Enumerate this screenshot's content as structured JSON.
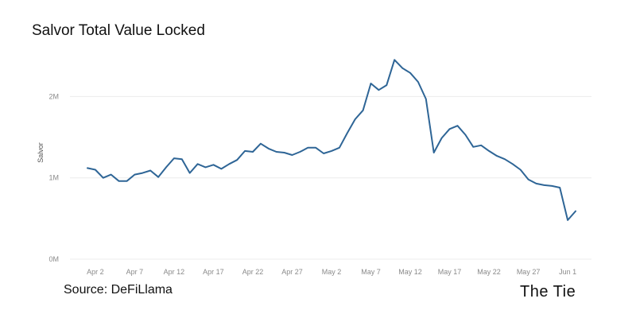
{
  "chart_data": {
    "type": "line",
    "title": "Salvor Total Value Locked",
    "ylabel": "Salvor",
    "xlabel": "",
    "x_tick_labels": [
      "Apr 2",
      "Apr 7",
      "Apr 12",
      "Apr 17",
      "Apr 22",
      "Apr 27",
      "May 2",
      "May 7",
      "May 12",
      "May 17",
      "May 22",
      "May 27",
      "Jun 1"
    ],
    "y_tick_labels": [
      "0M",
      "1M",
      "2M"
    ],
    "ylim": [
      0,
      2600000
    ],
    "grid": "horizontal",
    "line_color": "#2e6596",
    "series": [
      {
        "x": [
          "2023-04-01",
          "2023-04-02",
          "2023-04-03",
          "2023-04-04",
          "2023-04-05",
          "2023-04-06",
          "2023-04-07",
          "2023-04-08",
          "2023-04-09",
          "2023-04-10",
          "2023-04-11",
          "2023-04-12",
          "2023-04-13",
          "2023-04-14",
          "2023-04-15",
          "2023-04-16",
          "2023-04-17",
          "2023-04-18",
          "2023-04-19",
          "2023-04-20",
          "2023-04-21",
          "2023-04-22",
          "2023-04-23",
          "2023-04-24",
          "2023-04-25",
          "2023-04-26",
          "2023-04-27",
          "2023-04-28",
          "2023-04-29",
          "2023-04-30",
          "2023-05-01",
          "2023-05-02",
          "2023-05-03",
          "2023-05-04",
          "2023-05-05",
          "2023-05-06",
          "2023-05-07",
          "2023-05-08",
          "2023-05-09",
          "2023-05-10",
          "2023-05-11",
          "2023-05-12",
          "2023-05-13",
          "2023-05-14",
          "2023-05-15",
          "2023-05-16",
          "2023-05-17",
          "2023-05-18",
          "2023-05-19",
          "2023-05-20",
          "2023-05-21",
          "2023-05-22",
          "2023-05-23",
          "2023-05-24",
          "2023-05-25",
          "2023-05-26",
          "2023-05-27",
          "2023-05-28",
          "2023-05-29",
          "2023-05-30",
          "2023-05-31",
          "2023-06-01",
          "2023-06-02"
        ],
        "values": [
          1120000,
          1100000,
          1000000,
          1040000,
          960000,
          960000,
          1040000,
          1060000,
          1090000,
          1010000,
          1130000,
          1240000,
          1230000,
          1060000,
          1170000,
          1130000,
          1160000,
          1110000,
          1170000,
          1220000,
          1330000,
          1320000,
          1420000,
          1360000,
          1320000,
          1310000,
          1280000,
          1320000,
          1370000,
          1370000,
          1300000,
          1330000,
          1370000,
          1550000,
          1720000,
          1830000,
          2160000,
          2080000,
          2140000,
          2450000,
          2350000,
          2290000,
          2180000,
          1970000,
          1310000,
          1490000,
          1600000,
          1640000,
          1530000,
          1380000,
          1400000,
          1330000,
          1270000,
          1230000,
          1170000,
          1100000,
          980000,
          930000,
          910000,
          900000,
          880000,
          480000,
          590000
        ]
      }
    ]
  },
  "source_text": "Source: DeFiLlama",
  "brand_text": "The Tie"
}
